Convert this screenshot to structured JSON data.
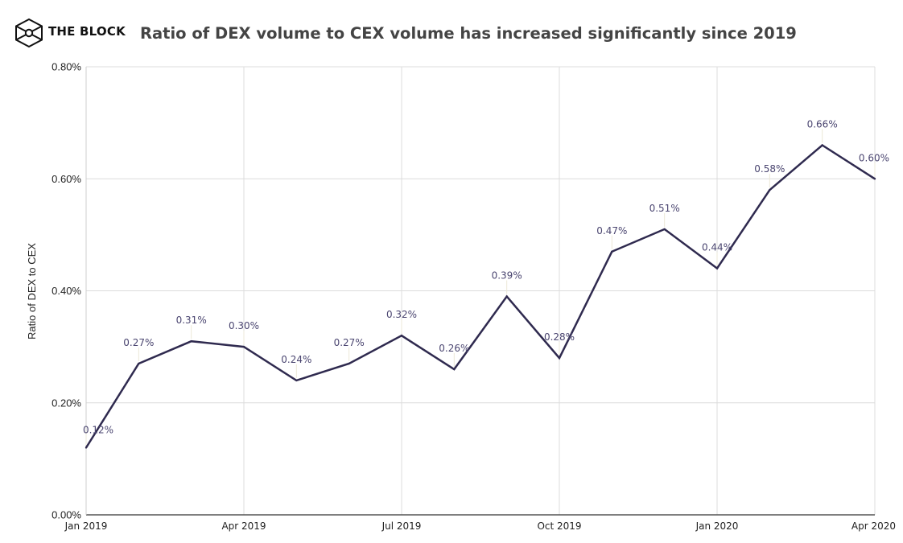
{
  "header": {
    "brand": "THE BLOCK",
    "logo_icon": "cube-logo-icon",
    "title": "Ratio of DEX volume to CEX volume has increased significantly since 2019"
  },
  "colors": {
    "line": "#2f2a4f",
    "data_label": "#4a4570",
    "grid": "#dcdcdc",
    "axis": "#555555",
    "title": "#444444"
  },
  "chart_data": {
    "type": "line",
    "title": "Ratio of DEX volume to CEX volume has increased significantly since 2019",
    "xlabel": "",
    "ylabel": "Ratio of DEX to CEX",
    "ylim": [
      0,
      0.8
    ],
    "y_unit": "%",
    "y_ticks": [
      0,
      0.2,
      0.4,
      0.6,
      0.8
    ],
    "y_tick_labels": [
      "0.00%",
      "0.20%",
      "0.40%",
      "0.60%",
      "0.80%"
    ],
    "x": [
      "Jan 2019",
      "Feb 2019",
      "Mar 2019",
      "Apr 2019",
      "May 2019",
      "Jun 2019",
      "Jul 2019",
      "Aug 2019",
      "Sep 2019",
      "Oct 2019",
      "Nov 2019",
      "Dec 2019",
      "Jan 2020",
      "Feb 2020",
      "Mar 2020",
      "Apr 2020"
    ],
    "x_ticks": [
      0,
      3,
      6,
      9,
      12,
      15
    ],
    "x_tick_labels": [
      "Jan 2019",
      "Apr 2019",
      "Jul 2019",
      "Oct 2019",
      "Jan 2020",
      "Apr 2020"
    ],
    "grid": true,
    "legend": "none",
    "series": [
      {
        "name": "Ratio of DEX to CEX",
        "values": [
          0.12,
          0.27,
          0.31,
          0.3,
          0.24,
          0.27,
          0.32,
          0.26,
          0.39,
          0.28,
          0.47,
          0.51,
          0.44,
          0.58,
          0.66,
          0.6
        ],
        "labels": [
          "0.12%",
          "0.27%",
          "0.31%",
          "0.30%",
          "0.24%",
          "0.27%",
          "0.32%",
          "0.26%",
          "0.39%",
          "0.28%",
          "0.47%",
          "0.51%",
          "0.44%",
          "0.58%",
          "0.66%",
          "0.60%"
        ]
      }
    ]
  }
}
